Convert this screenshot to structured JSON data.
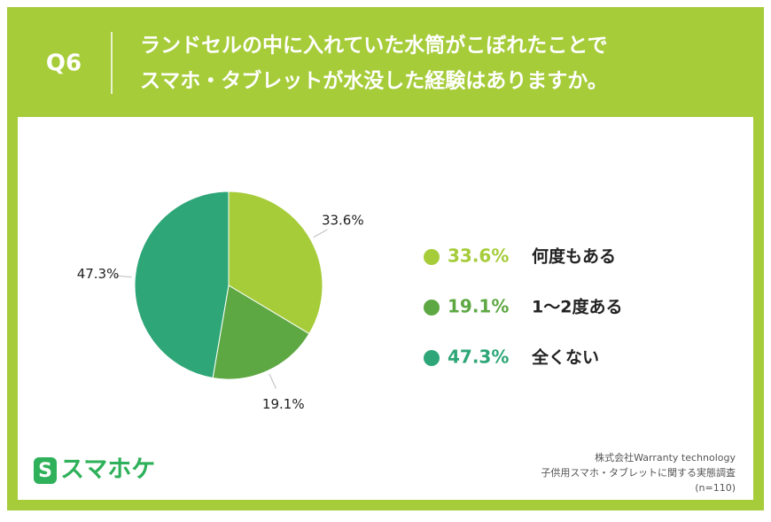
{
  "chart_data": {
    "type": "pie",
    "question": "Q6",
    "title": [
      "ランドセルの中に入れていた水筒がこぼれたことで",
      "スマホ・タブレットが水没した経験はありますか。"
    ],
    "categories": [
      "何度もある",
      "1〜2度ある",
      "全くない"
    ],
    "values": [
      33.6,
      19.1,
      47.3
    ],
    "value_labels": [
      "33.6%",
      "19.1%",
      "47.3%"
    ],
    "colors": [
      "#a6cc3a",
      "#5ea843",
      "#2ea677"
    ],
    "logo": "スマホケ",
    "source": [
      "株式会社Warranty technology",
      "子供用スマホ・タブレットに関する実態調査",
      "(n=110)"
    ]
  }
}
